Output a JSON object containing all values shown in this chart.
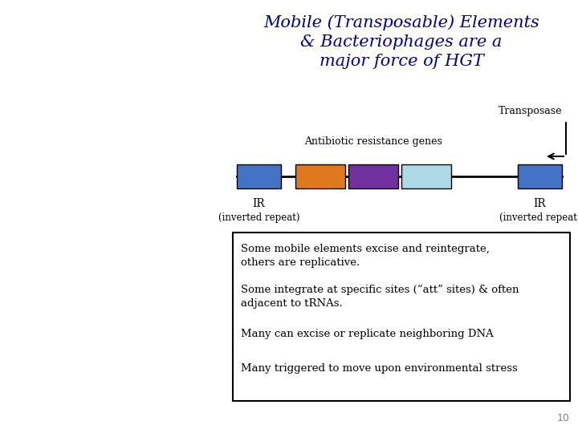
{
  "title": "Mobile (Transposable) Elements\n& Bacteriophages are a\nmajor force of HGT",
  "title_color": "#00008B",
  "title_fontsize": 15,
  "bg_color": "#FFFFFF",
  "ir_color": "#4472C4",
  "gene1_color": "#E07820",
  "gene2_color": "#7030A0",
  "gene3_color": "#ADD8E6",
  "transposase_label": "Transposase",
  "abr_label": "Antibiotic resistance genes",
  "ir_label": "IR",
  "inverted_repeat_label": "(inverted repeat)",
  "bullet_points": [
    "Some mobile elements excise and reintegrate,\nothers are replicative.",
    "Some integrate at specific sites (“att” sites) & often\nadjacent to tRNAs.",
    "Many can excise or replicate neighboring DNA",
    "Many triggered to move upon environmental stress"
  ],
  "page_number": "10"
}
